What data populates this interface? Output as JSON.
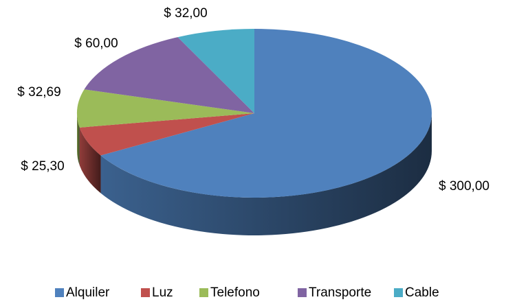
{
  "chart_data": {
    "type": "pie3d",
    "categories": [
      "Alquiler",
      "Luz",
      "Telefono",
      "Transporte",
      "Cable"
    ],
    "values": [
      300,
      25.3,
      32.69,
      60,
      32
    ],
    "value_labels": [
      "$ 300,00",
      "$ 25,30",
      "$ 32,69",
      "$ 60,00",
      "$ 32,00"
    ],
    "colors": [
      "#4f81bd",
      "#c0504d",
      "#9bbb59",
      "#8064a2",
      "#4bacc6"
    ],
    "legend": "bottom"
  }
}
